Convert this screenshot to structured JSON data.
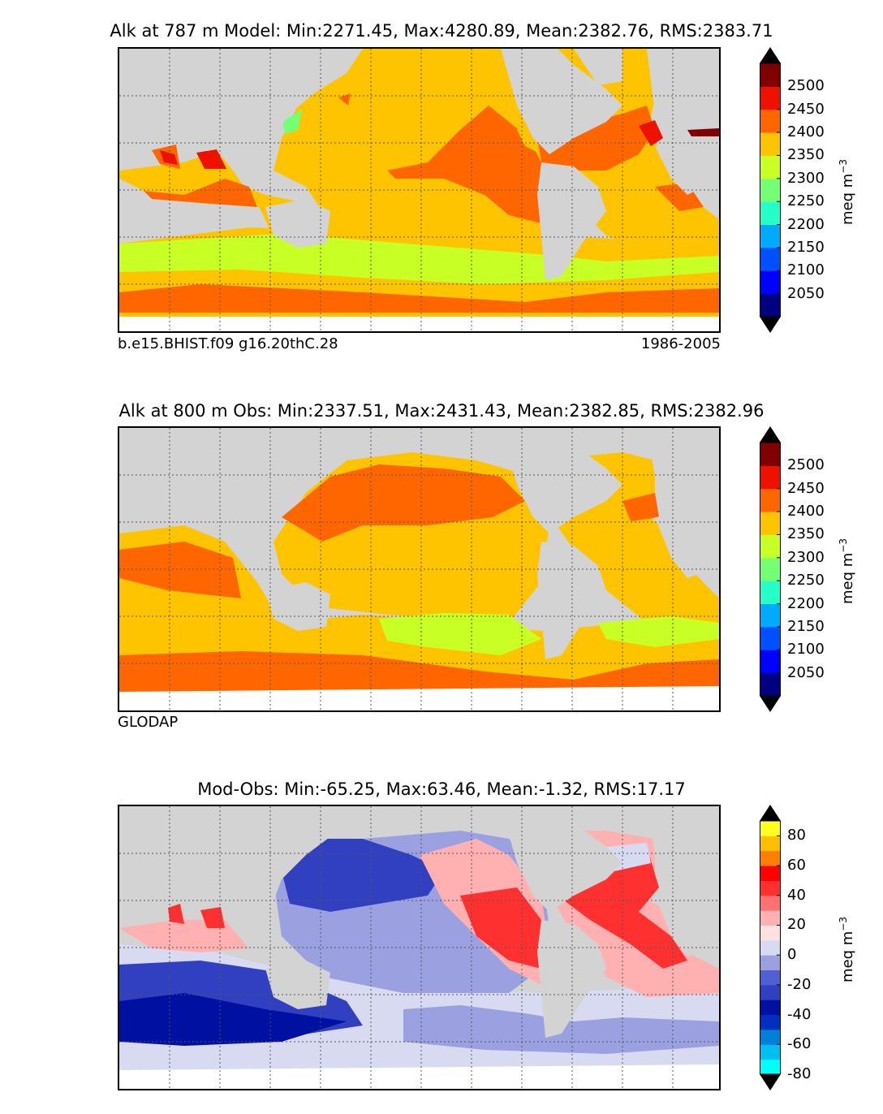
{
  "chart_data": [
    {
      "type": "heatmap",
      "title": "Alk at 787 m Model: Min:2271.45, Max:4280.89, Mean:2382.76, RMS:2383.71",
      "caption_left": "b.e15.BHIST.f09 g16.20thC.28",
      "caption_right": "1986-2005",
      "colorbar": {
        "unit_base": "meq m",
        "unit_exp": "−3",
        "ticks": [
          "2050",
          "2100",
          "2150",
          "2200",
          "2250",
          "2300",
          "2350",
          "2400",
          "2450",
          "2500"
        ],
        "level_colors": [
          "#000080",
          "#0000ff",
          "#0050ff",
          "#00aaff",
          "#25ffc8",
          "#75ff75",
          "#c8ff25",
          "#ffc400",
          "#ff6600",
          "#ee1100",
          "#800000"
        ],
        "extend": "both"
      }
    },
    {
      "type": "heatmap",
      "title": "Alk at 800 m Obs: Min:2337.51, Max:2431.43, Mean:2382.85, RMS:2382.96",
      "caption_left": "GLODAP",
      "caption_right": "",
      "colorbar": {
        "unit_base": "meq m",
        "unit_exp": "−3",
        "ticks": [
          "2050",
          "2100",
          "2150",
          "2200",
          "2250",
          "2300",
          "2350",
          "2400",
          "2450",
          "2500"
        ],
        "level_colors": [
          "#000080",
          "#0000ff",
          "#0050ff",
          "#00aaff",
          "#25ffc8",
          "#75ff75",
          "#c8ff25",
          "#ffc400",
          "#ff6600",
          "#ee1100",
          "#800000"
        ],
        "extend": "both"
      }
    },
    {
      "type": "heatmap",
      "title": "Mod-Obs: Min:-65.25, Max:63.46, Mean:-1.32, RMS:17.17",
      "caption_left": "",
      "caption_right": "",
      "colorbar": {
        "unit_base": "meq m",
        "unit_exp": "−3",
        "ticks": [
          "-80",
          "-60",
          "-40",
          "-20",
          "0",
          "20",
          "40",
          "60",
          "80"
        ],
        "level_colors": [
          "#00ffff",
          "#00c0f0",
          "#0080d8",
          "#0030c0",
          "#0010a0",
          "#3040c0",
          "#5060d0",
          "#9aa0e0",
          "#d8daf2",
          "#ffe0e0",
          "#ffb0b0",
          "#ff7070",
          "#ff3030",
          "#ff0000",
          "#ff7f00",
          "#ffbf00",
          "#ffff20"
        ],
        "extend": "both"
      }
    }
  ]
}
